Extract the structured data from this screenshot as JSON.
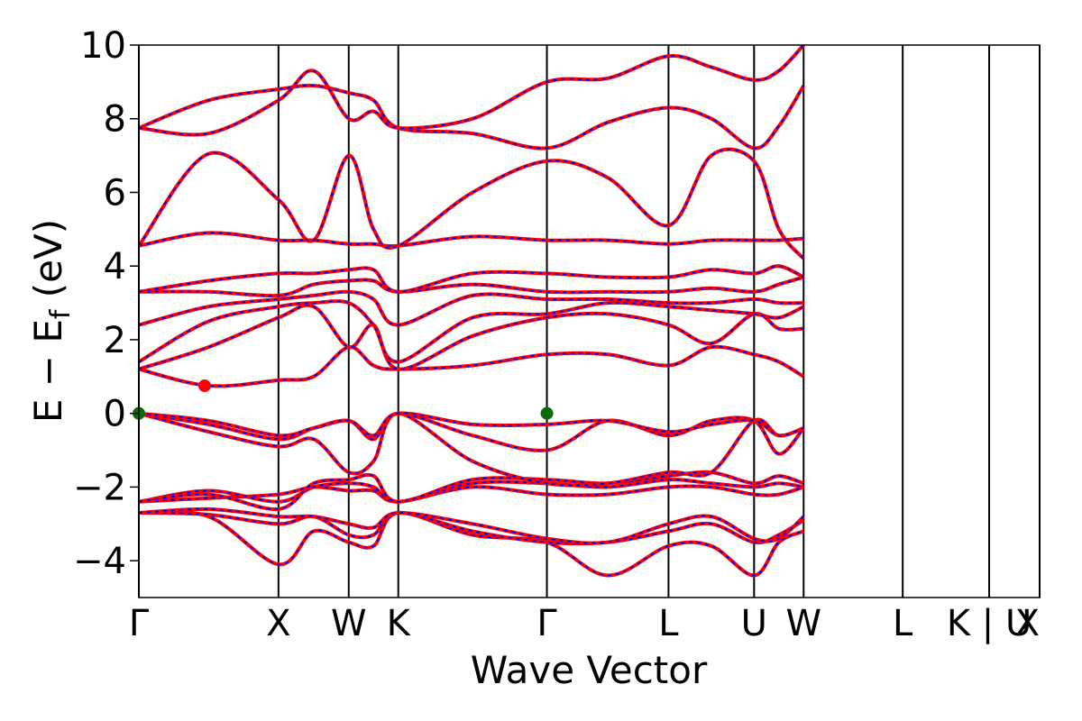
{
  "chart_data": {
    "type": "line",
    "xlabel": "Wave Vector",
    "ylabel": "E − E",
    "ylabel_sub": "f",
    "ylabel_unit": " (eV)",
    "ylim": [
      -5,
      10
    ],
    "yticks": [
      "10",
      "8",
      "6",
      "4",
      "2",
      "0",
      "−2",
      "−4"
    ],
    "ytick_values": [
      10,
      8,
      6,
      4,
      2,
      0,
      -2,
      -4
    ],
    "xlim": [
      0,
      1
    ],
    "kpoints": [
      {
        "label": "Γ",
        "x": 0.0
      },
      {
        "label": "X",
        "x": 0.155
      },
      {
        "label": "W",
        "x": 0.233
      },
      {
        "label": "K",
        "x": 0.288
      },
      {
        "label": "Γ",
        "x": 0.453
      },
      {
        "label": "L",
        "x": 0.588
      },
      {
        "label": "U",
        "x": 0.683
      },
      {
        "label": "W",
        "x": 0.738
      },
      {
        "label": "L",
        "x": 0.848
      },
      {
        "label": "K | U",
        "x": 0.944
      },
      {
        "label": "X",
        "x": 1.0
      }
    ],
    "colors": {
      "band_solid": "#ff0000",
      "band_dashed": "#0000ff",
      "vbm": "#0a6b0a",
      "cbm": "#ff0000"
    },
    "markers": [
      {
        "name": "VBM",
        "x": 0.0,
        "y": 0.0,
        "color": "#0a6b0a"
      },
      {
        "name": "VBM",
        "x": 0.453,
        "y": 0.0,
        "color": "#0a6b0a"
      },
      {
        "name": "CBM",
        "x": 0.073,
        "y": 0.75,
        "color": "#ff0000"
      }
    ],
    "bands": [
      [
        -2.7,
        -2.8,
        -4.1,
        -3.2,
        -3.5,
        -3.6,
        -2.7,
        -3.3,
        -3.5,
        -4.4,
        -3.6,
        -3.6,
        -4.4,
        -3.5,
        -3.2
      ],
      [
        -2.7,
        -2.75,
        -3.0,
        -2.8,
        -3.3,
        -3.3,
        -2.7,
        -3.2,
        -3.5,
        -3.5,
        -3.2,
        -3.0,
        -3.5,
        -3.3,
        -2.9
      ],
      [
        -2.7,
        -2.6,
        -2.8,
        -2.8,
        -3.0,
        -3.1,
        -2.7,
        -3.0,
        -3.4,
        -3.5,
        -3.0,
        -2.8,
        -3.4,
        -3.4,
        -2.8
      ],
      [
        -2.4,
        -2.3,
        -2.2,
        -2.0,
        -2.1,
        -2.1,
        -2.4,
        -2.0,
        -2.2,
        -2.2,
        -2.0,
        -2.0,
        -2.2,
        -2.2,
        -2.0
      ],
      [
        -2.4,
        -2.1,
        -2.4,
        -2.0,
        -1.9,
        -2.0,
        -2.4,
        -1.9,
        -1.9,
        -2.0,
        -1.8,
        -1.9,
        -2.0,
        -1.9,
        -2.0
      ],
      [
        -2.4,
        -2.2,
        -2.6,
        -1.9,
        -1.8,
        -1.7,
        -2.4,
        -1.8,
        -1.8,
        -1.9,
        -1.7,
        -1.6,
        -1.9,
        -1.7,
        -1.9
      ],
      [
        0.0,
        -0.5,
        -0.9,
        -0.7,
        -1.6,
        -1.3,
        0.0,
        -1.3,
        -1.9,
        -1.9,
        -1.6,
        -1.6,
        -0.2,
        -0.6,
        -0.4
      ],
      [
        0.0,
        -0.3,
        -0.7,
        -0.4,
        -0.2,
        -0.7,
        0.0,
        -0.6,
        -1.0,
        -0.2,
        -0.6,
        -0.2,
        -0.2,
        -1.1,
        -0.4
      ],
      [
        0.0,
        -0.2,
        -0.6,
        -0.4,
        -0.2,
        -0.6,
        0.0,
        -0.3,
        -0.3,
        -0.2,
        -0.5,
        -0.3,
        -0.2,
        -0.6,
        -0.4
      ],
      [
        1.2,
        0.75,
        0.9,
        1.0,
        1.8,
        1.3,
        1.2,
        1.3,
        1.6,
        1.6,
        1.3,
        1.8,
        1.6,
        1.4,
        1.0
      ],
      [
        1.2,
        1.8,
        2.6,
        2.9,
        1.8,
        2.4,
        1.2,
        2.1,
        2.6,
        2.7,
        2.4,
        1.9,
        2.7,
        2.3,
        2.3
      ],
      [
        1.4,
        2.5,
        2.9,
        3.0,
        3.0,
        2.4,
        1.4,
        2.6,
        2.7,
        3.0,
        2.9,
        2.8,
        2.7,
        2.6,
        2.9
      ],
      [
        2.4,
        2.9,
        3.1,
        3.2,
        3.3,
        3.1,
        2.4,
        3.2,
        3.1,
        3.1,
        3.0,
        3.0,
        3.1,
        3.0,
        3.0
      ],
      [
        3.3,
        3.3,
        3.2,
        3.5,
        3.6,
        3.6,
        3.3,
        3.5,
        3.3,
        3.3,
        3.3,
        3.4,
        3.3,
        3.5,
        3.7
      ],
      [
        3.3,
        3.6,
        3.8,
        3.8,
        3.9,
        3.9,
        3.3,
        3.8,
        3.8,
        3.7,
        3.7,
        3.9,
        3.8,
        4.0,
        3.7
      ],
      [
        4.55,
        4.9,
        4.7,
        4.7,
        4.6,
        4.6,
        4.55,
        4.8,
        4.7,
        4.7,
        4.6,
        4.7,
        4.7,
        4.7,
        4.75
      ],
      [
        4.55,
        7.05,
        5.8,
        4.7,
        7.0,
        5.0,
        4.55,
        6.0,
        6.85,
        6.4,
        5.1,
        7.0,
        6.85,
        5.0,
        4.2
      ],
      [
        7.75,
        8.5,
        8.8,
        8.9,
        8.7,
        8.5,
        7.75,
        7.6,
        7.2,
        7.9,
        8.3,
        8.0,
        7.2,
        7.8,
        8.9
      ],
      [
        7.75,
        7.6,
        8.5,
        9.3,
        8.0,
        8.2,
        7.75,
        8.0,
        9.0,
        9.1,
        9.7,
        9.4,
        9.05,
        9.3,
        10.0
      ]
    ]
  }
}
